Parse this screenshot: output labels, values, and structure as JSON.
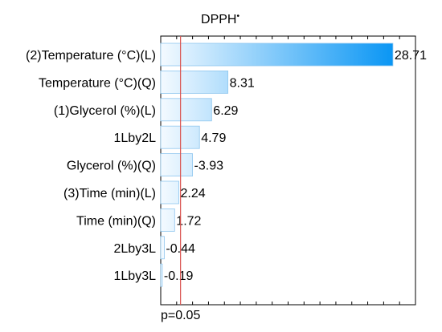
{
  "chart_data": {
    "type": "bar",
    "orientation": "horizontal",
    "title": "DPPH",
    "title_superscript": "•",
    "categories": [
      "(2)Temperature (°C)(L)",
      "Temperature (°C)(Q)",
      "(1)Glycerol (%)(L)",
      "1Lby2L",
      "Glycerol (%)(Q)",
      "(3)Time (min)(L)",
      "Time (min)(Q)",
      "2Lby3L",
      "1Lby3L"
    ],
    "values": [
      28.71,
      8.31,
      6.29,
      4.79,
      -3.93,
      2.24,
      1.72,
      -0.44,
      -0.19
    ],
    "value_labels": [
      "28.71",
      "8.31",
      "6.29",
      "4.79",
      "-3.93",
      "2.24",
      "1.72",
      "-0.44",
      "-0.19"
    ],
    "bar_length_basis": "absolute value",
    "xlim": [
      0,
      31.5
    ],
    "reference_line": {
      "value": 2.45,
      "label": "p=0.05",
      "color": "#d9534f"
    },
    "grid": false,
    "colors": {
      "bar_light": "#f4faff",
      "bar_dark": "#0a96f4",
      "bar_edge": "#8fc6ee",
      "frame": "#000000"
    }
  }
}
